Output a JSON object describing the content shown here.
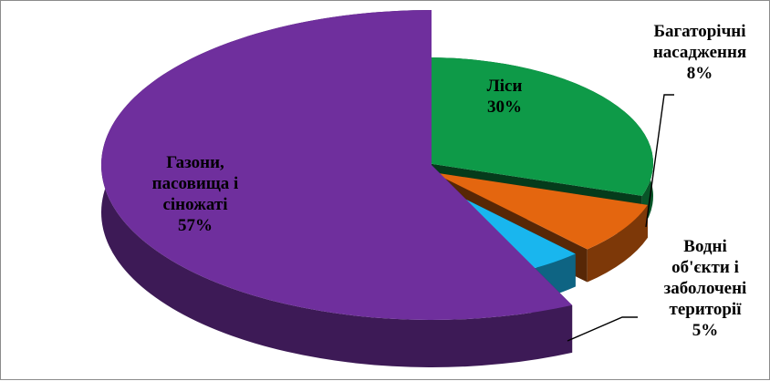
{
  "colors": {
    "forests": "#0e9a48",
    "perennial": "#e4660f",
    "water": "#19b6ee",
    "grass": "#6f2f9d"
  },
  "chart_data": {
    "type": "pie",
    "title": "",
    "three_d": true,
    "exploded": true,
    "legend": "none",
    "slices": [
      {
        "label_lines": [
          "Ліси",
          "30%"
        ],
        "value": 30,
        "color_key": "forests"
      },
      {
        "label_lines": [
          "Багаторічні",
          "насадження",
          "8%"
        ],
        "value": 8,
        "color_key": "perennial"
      },
      {
        "label_lines": [
          "Водні",
          "об'єкти і",
          "заболочені",
          "території",
          "5%"
        ],
        "value": 5,
        "color_key": "water"
      },
      {
        "label_lines": [
          "Газони,",
          "пасовища і",
          "сіножаті",
          "57%"
        ],
        "value": 57,
        "color_key": "grass"
      }
    ]
  }
}
